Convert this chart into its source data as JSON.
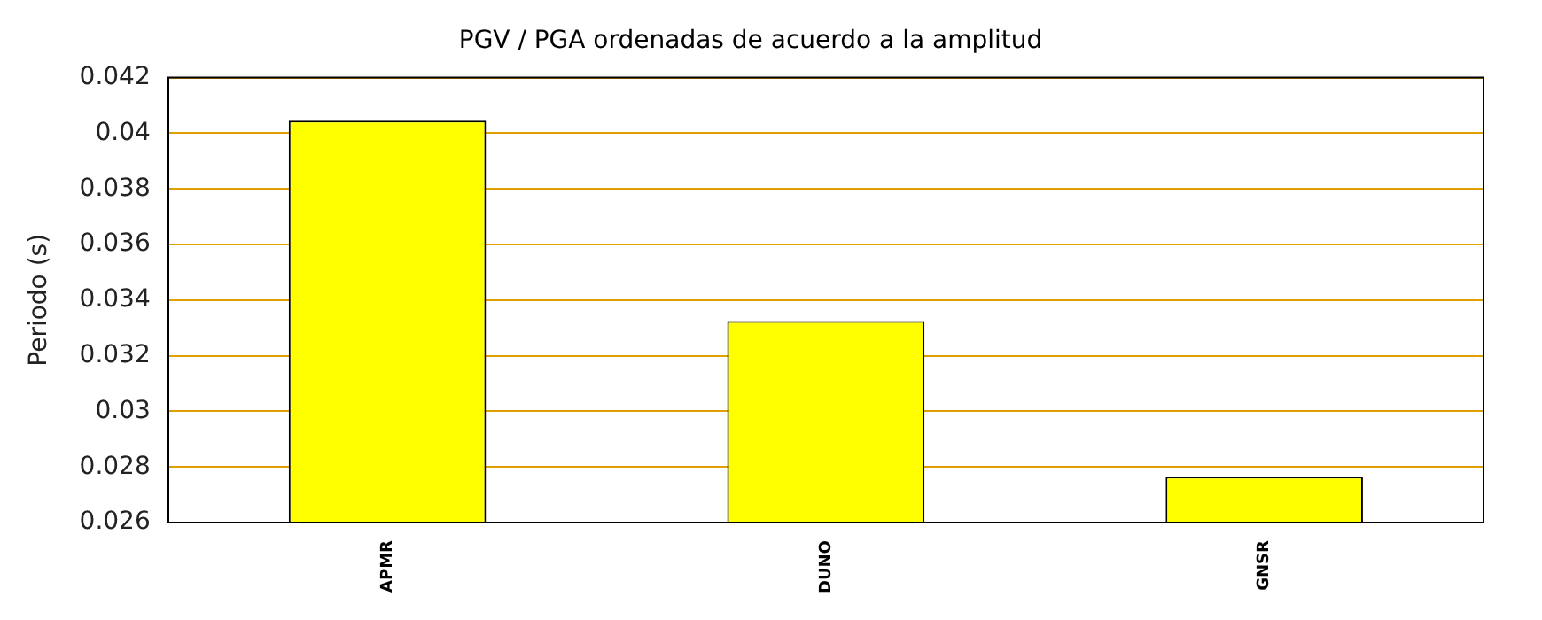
{
  "chart_data": {
    "type": "bar",
    "title": "PGV / PGA ordenadas de acuerdo a la amplitud",
    "ylabel": "Periodo (s)",
    "categories": [
      "APMR",
      "DUNO",
      "GNSR"
    ],
    "values": [
      0.04045,
      0.03325,
      0.02765
    ],
    "color": "#ffff00",
    "ylim": [
      0.026,
      0.042
    ],
    "yticks": [
      0.026,
      0.028,
      0.03,
      0.032,
      0.034,
      0.036,
      0.038,
      0.04,
      0.042
    ],
    "grid": "y",
    "legend": false
  }
}
